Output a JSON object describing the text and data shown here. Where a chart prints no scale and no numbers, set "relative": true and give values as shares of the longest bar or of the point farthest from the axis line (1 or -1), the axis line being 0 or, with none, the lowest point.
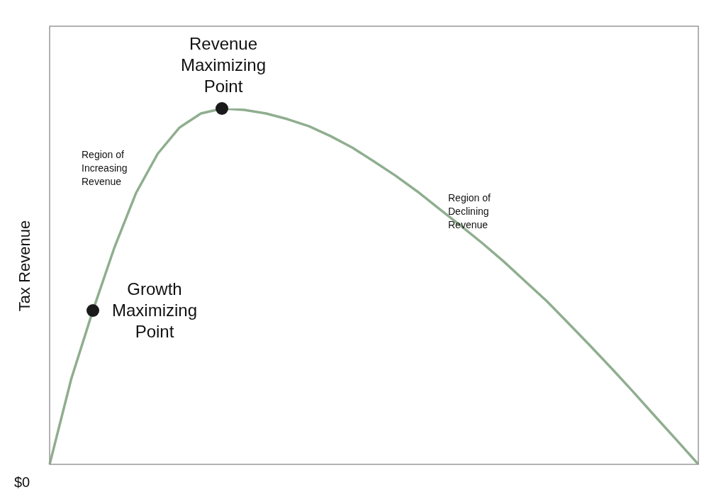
{
  "chart_data": {
    "type": "line",
    "relative": true,
    "ylabel": "Tax Revenue",
    "categories": [
      null,
      null,
      null,
      null,
      null,
      null,
      null,
      null,
      null,
      null,
      null,
      null,
      null,
      null,
      null,
      null,
      null,
      null,
      null,
      null,
      null,
      null,
      null,
      null,
      null,
      null,
      null,
      null,
      null,
      null,
      null
    ],
    "series": [
      {
        "color": "#8fae8f",
        "values": [
          0,
          0.24,
          0.432,
          0.61,
          0.763,
          0.873,
          0.946,
          0.986,
          1,
          0.996,
          0.986,
          0.97,
          0.95,
          0.922,
          0.89,
          0.851,
          0.811,
          0.767,
          0.719,
          0.671,
          0.622,
          0.57,
          0.514,
          0.458,
          0.396,
          0.333,
          0.269,
          0.203,
          0.135,
          0.068,
          0
        ]
      }
    ],
    "annotations": [
      "Revenue\nMaximizing\nPoint",
      "Growth\nMaximizing\nPoint",
      "Region of\nIncreasing\nRevenue",
      "Region of\nDeclining\nRevenue",
      "$0"
    ]
  }
}
